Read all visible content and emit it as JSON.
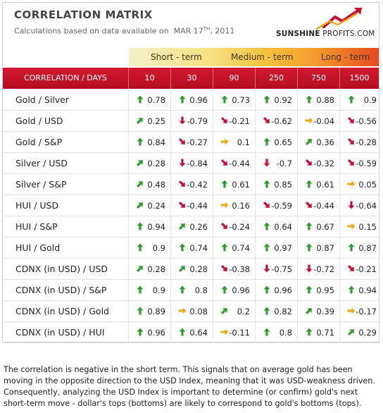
{
  "header": {
    "title": "CORRELATION MATRIX",
    "subtitle_prefix": "Calculations based on data available on",
    "subtitle_date": "MAR 17",
    "subtitle_date_sup": "TH",
    "subtitle_year": ", 2011",
    "logo_bold": "SUNSHINE",
    "logo_thin": " PROFITS.COM"
  },
  "terms": [
    "Short - term",
    "Medium - term",
    "Long - term"
  ],
  "table": {
    "corner_label": "CORRELATION / DAYS",
    "columns": [
      "10",
      "30",
      "90",
      "250",
      "750",
      "1500"
    ],
    "rows": [
      {
        "label": "Gold / Silver",
        "values": [
          "0.78",
          "0.96",
          "0.73",
          "0.92",
          "0.88",
          "0.9"
        ],
        "arrows": [
          "up",
          "up",
          "up",
          "up",
          "up",
          "up"
        ]
      },
      {
        "label": "Gold / USD",
        "values": [
          "0.25",
          "-0.79",
          "-0.21",
          "-0.62",
          "-0.04",
          "-0.56"
        ],
        "arrows": [
          "up-right",
          "down",
          "down-right",
          "down-right",
          "right",
          "down-right"
        ]
      },
      {
        "label": "Gold / S&P",
        "values": [
          "0.84",
          "-0.27",
          "0.1",
          "0.65",
          "0.36",
          "-0.28"
        ],
        "arrows": [
          "up",
          "down-right",
          "right",
          "up",
          "up-right",
          "down-right"
        ]
      },
      {
        "label": "Silver / USD",
        "values": [
          "0.28",
          "-0.84",
          "-0.44",
          "-0.7",
          "-0.32",
          "-0.59"
        ],
        "arrows": [
          "up-right",
          "down",
          "down-right",
          "down",
          "down-right",
          "down-right"
        ]
      },
      {
        "label": "Silver / S&P",
        "values": [
          "0.48",
          "-0.42",
          "0.61",
          "0.85",
          "0.61",
          "0.05"
        ],
        "arrows": [
          "up-right",
          "down-right",
          "up",
          "up",
          "up",
          "right"
        ]
      },
      {
        "label": "HUI / USD",
        "values": [
          "0.24",
          "-0.44",
          "0.16",
          "-0.59",
          "-0.44",
          "-0.64"
        ],
        "arrows": [
          "up-right",
          "down-right",
          "right",
          "down-right",
          "down-right",
          "down"
        ]
      },
      {
        "label": "HUI / S&P",
        "values": [
          "0.94",
          "0.26",
          "-0.24",
          "0.64",
          "0.67",
          "0.15"
        ],
        "arrows": [
          "up",
          "up-right",
          "down-right",
          "up",
          "up",
          "right"
        ]
      },
      {
        "label": "HUI / Gold",
        "values": [
          "0.9",
          "0.74",
          "0.74",
          "0.97",
          "0.87",
          "0.87"
        ],
        "arrows": [
          "up",
          "up",
          "up",
          "up",
          "up",
          "up"
        ]
      },
      {
        "label": "CDNX (in USD) / USD",
        "values": [
          "0.28",
          "0.28",
          "-0.38",
          "-0.75",
          "-0.72",
          "-0.21"
        ],
        "arrows": [
          "up-right",
          "up-right",
          "down-right",
          "down",
          "down",
          "down-right"
        ]
      },
      {
        "label": "CDNX (in USD) / S&P",
        "values": [
          "0.9",
          "0.8",
          "0.96",
          "0.96",
          "0.95",
          "0.94"
        ],
        "arrows": [
          "up",
          "up",
          "up",
          "up",
          "up",
          "up"
        ]
      },
      {
        "label": "CDNX (in USD) / Gold",
        "values": [
          "0.89",
          "0.08",
          "0.2",
          "0.82",
          "0.39",
          "-0.17"
        ],
        "arrows": [
          "up",
          "right",
          "up-right",
          "up",
          "up-right",
          "right"
        ]
      },
      {
        "label": "CDNX (in USD) / HUI",
        "values": [
          "0.96",
          "0.64",
          "-0.11",
          "0.8",
          "0.71",
          "0.29"
        ],
        "arrows": [
          "up",
          "up",
          "right",
          "up",
          "up",
          "up-right"
        ]
      }
    ]
  },
  "arrow_colors": {
    "up": "#2e9e2e",
    "up-right": "#2e9e2e",
    "right": "#f0a81a",
    "down-right": "#c8102e",
    "down": "#c8102e"
  },
  "note": "The correlation is negative in the short term. This signals that on average gold has been moving in the opposite direction to the USD Index, meaning that it was USD-weakness driven. Consequently, analyzing the USD Index is important to determine (or confirm) gold's next short-term move - dollar's tops (bottoms) are likely to correspond to gold's bottoms (tops)."
}
